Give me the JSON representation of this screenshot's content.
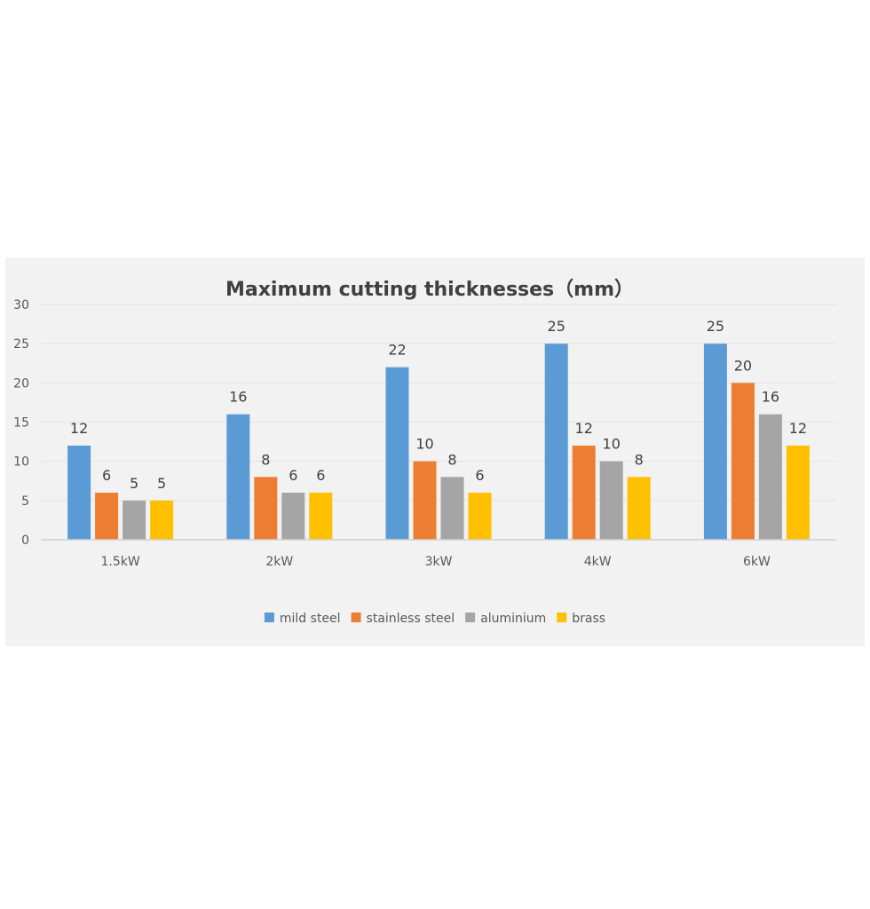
{
  "chart_data": {
    "type": "bar",
    "title": "Maximum cutting thicknesses（mm）",
    "xlabel": "",
    "ylabel": "",
    "categories": [
      "1.5kW",
      "2kW",
      "3kW",
      "4kW",
      "6kW"
    ],
    "ylim": [
      0,
      30
    ],
    "yticks": [
      0,
      5,
      10,
      15,
      20,
      25,
      30
    ],
    "grid": true,
    "legend_position": "bottom",
    "data_labels": true,
    "series": [
      {
        "name": "mild steel",
        "color": "#5b9bd5",
        "values": [
          12,
          16,
          22,
          25,
          25
        ]
      },
      {
        "name": "stainless steel",
        "color": "#ed7d31",
        "values": [
          6,
          8,
          10,
          12,
          20
        ]
      },
      {
        "name": "aluminium",
        "color": "#a5a5a5",
        "values": [
          5,
          6,
          8,
          10,
          16
        ]
      },
      {
        "name": "brass",
        "color": "#ffc000",
        "values": [
          5,
          6,
          6,
          8,
          12
        ]
      }
    ]
  }
}
